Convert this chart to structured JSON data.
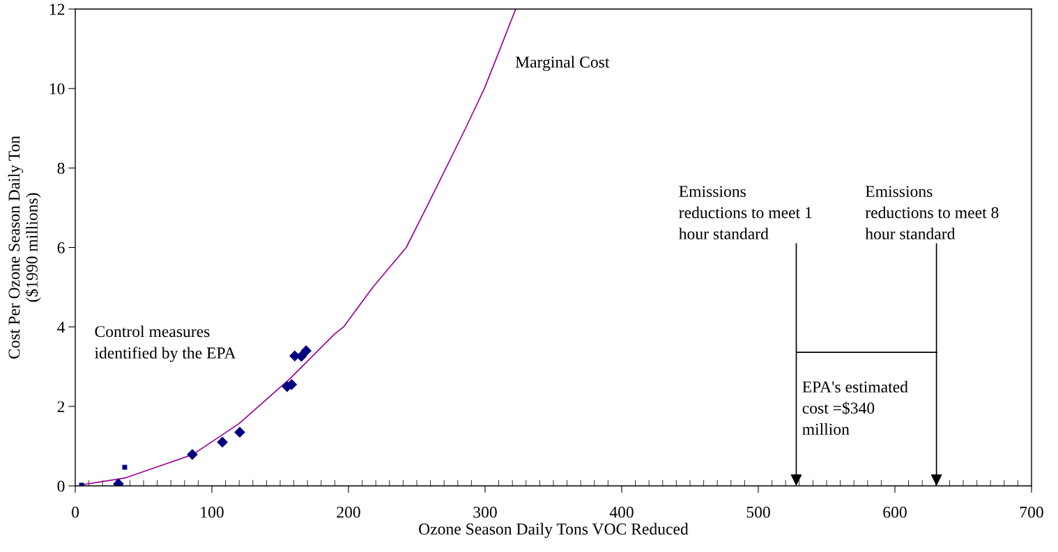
{
  "chart_data": {
    "type": "scatter",
    "xlabel": "Ozone Season Daily Tons VOC Reduced",
    "ylabel": "Cost Per Ozone Season Daily Ton\n($1990 millions)",
    "xlim": [
      0,
      700
    ],
    "xticks": [
      0,
      100,
      200,
      300,
      400,
      500,
      600,
      700
    ],
    "ylim": [
      0,
      12
    ],
    "yticks": [
      0,
      2,
      4,
      6,
      8,
      10,
      12
    ],
    "grid": false,
    "legend": false,
    "series": [
      {
        "type": "line",
        "color": "#990099",
        "marker": "none",
        "x": [
          3.6,
          36.7,
          86.1,
          120,
          157.5,
          189.8,
          196.4,
          217.9,
          242.3,
          257,
          271.4,
          285.7,
          299.5,
          311,
          322.4
        ],
        "values": [
          0.02,
          0.2,
          0.79,
          1.57,
          2.71,
          3.82,
          4.0,
          5.0,
          6.0,
          7.0,
          8.0,
          9.0,
          10.0,
          11.0,
          12.0
        ]
      },
      {
        "color": "#000080",
        "marker": "diamond",
        "x": [
          31.6,
          85.7,
          107.7,
          120.4,
          155.1,
          158.4,
          160.7,
          165.5,
          169.0
        ],
        "values": [
          0.05,
          0.79,
          1.1,
          1.35,
          2.5,
          2.55,
          3.27,
          3.26,
          3.4
        ]
      },
      {
        "color": "#000080",
        "marker": "square",
        "x": [
          4.6,
          36.2
        ],
        "values": [
          0.02,
          0.47
        ]
      },
      {
        "type": "line",
        "color": "#000000",
        "marker": "none",
        "x": [
          528,
          630.6
        ],
        "values": [
          3.36,
          3.36
        ]
      }
    ],
    "annotations": [
      "Marginal Cost",
      "Control measures\nidentified by the EPA",
      "EPA's estimated\ncost =$340\nmillion",
      "Emissions\nreductions to meet 1\nhour standard",
      "Emissions\nreductions to meet 8\nhour standard"
    ]
  }
}
